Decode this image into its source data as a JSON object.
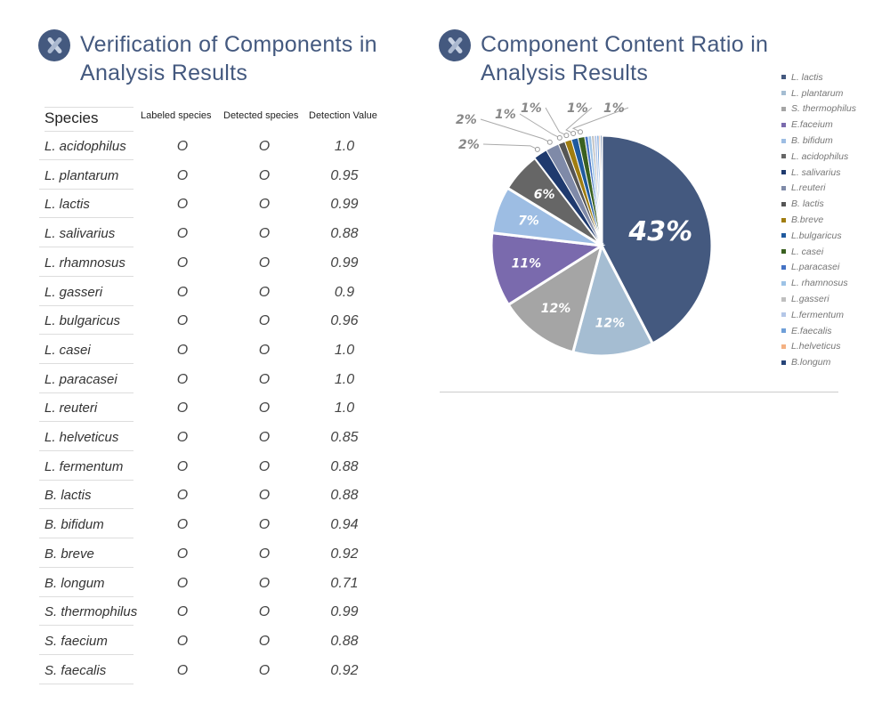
{
  "left": {
    "title_line1": "Verification of Components in",
    "title_line2": "Analysis Results",
    "icon": "chromosome-icon",
    "headers": [
      "Species",
      "Labeled species",
      "Detected species",
      "Detection Value"
    ],
    "rows": [
      [
        "L. acidophilus",
        "O",
        "O",
        "1.0"
      ],
      [
        "L. plantarum",
        "O",
        "O",
        "0.95"
      ],
      [
        "L. lactis",
        "O",
        "O",
        "0.99"
      ],
      [
        "L. salivarius",
        "O",
        "O",
        "0.88"
      ],
      [
        "L. rhamnosus",
        "O",
        "O",
        "0.99"
      ],
      [
        "L. gasseri",
        "O",
        "O",
        "0.9"
      ],
      [
        "L. bulgaricus",
        "O",
        "O",
        "0.96"
      ],
      [
        "L. casei",
        "O",
        "O",
        "1.0"
      ],
      [
        "L. paracasei",
        "O",
        "O",
        "1.0"
      ],
      [
        "L. reuteri",
        "O",
        "O",
        "1.0"
      ],
      [
        "L. helveticus",
        "O",
        "O",
        "0.85"
      ],
      [
        "L. fermentum",
        "O",
        "O",
        "0.88"
      ],
      [
        "B. lactis",
        "O",
        "O",
        "0.88"
      ],
      [
        "B. bifidum",
        "O",
        "O",
        "0.94"
      ],
      [
        "B. breve",
        "O",
        "O",
        "0.92"
      ],
      [
        "B. longum",
        "O",
        "O",
        "0.71"
      ],
      [
        "S. thermophilus",
        "O",
        "O",
        "0.99"
      ],
      [
        "S. faecium",
        "O",
        "O",
        "0.88"
      ],
      [
        "S. faecalis",
        "O",
        "O",
        "0.92"
      ]
    ]
  },
  "right": {
    "title_line1": "Component Content Ratio in",
    "title_line2": "Analysis Results",
    "icon": "chromosome-icon"
  },
  "chart_data": {
    "type": "pie",
    "legend_position": "right",
    "categories": [
      "L. lactis",
      "L. plantarum",
      "S. thermophilus",
      "E.faceium",
      "B. bifidum",
      "L. acidophilus",
      "L. salivarius",
      "L.reuteri",
      "B. lactis",
      "B.breve",
      "L.bulgaricus",
      "L. casei",
      "L.paracasei",
      "L. rhamnosus",
      "L.gasseri",
      "L.fermentum",
      "E.faecalis",
      "L.helveticus",
      "B.longum"
    ],
    "values": [
      43,
      12,
      12,
      11,
      7,
      6,
      2,
      2,
      1,
      1,
      1,
      1,
      0.5,
      0.5,
      0.4,
      0.4,
      0.3,
      0.2,
      0.2
    ],
    "labels": [
      "43%",
      "12%",
      "12%",
      "11%",
      "7%",
      "6%",
      "2%",
      "2%",
      "1%",
      "1%",
      "1%",
      "1%",
      "",
      "",
      "",
      "",
      "",
      "",
      ""
    ],
    "colors": [
      "#44597f",
      "#a5bdd2",
      "#a5a5a5",
      "#7a6aad",
      "#9dbde3",
      "#666666",
      "#1f3a6e",
      "#7f8aa8",
      "#555555",
      "#a07d10",
      "#1f5a9e",
      "#3a6020",
      "#4472c4",
      "#9dc3e6",
      "#bfbfbf",
      "#b4c7e7",
      "#6f9fd8",
      "#f4b183",
      "#264478"
    ]
  }
}
